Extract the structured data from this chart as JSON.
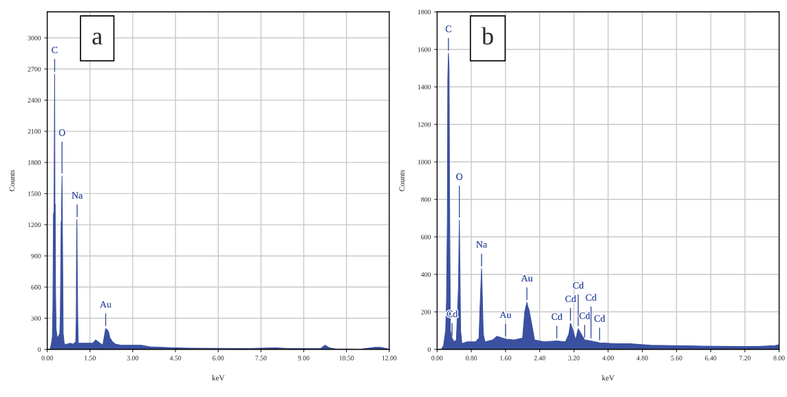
{
  "chart_data": [
    {
      "type": "area",
      "xlabel": "keV",
      "ylabel": "Counts",
      "xlim": [
        0,
        12
      ],
      "ylim": [
        0,
        3250
      ],
      "xticks": [
        {
          "value": 0,
          "label": "0.00"
        },
        {
          "value": 1.5,
          "label": "1.50"
        },
        {
          "value": 3,
          "label": "3.00"
        },
        {
          "value": 4.5,
          "label": "4.50"
        },
        {
          "value": 6,
          "label": "6.00"
        },
        {
          "value": 7.5,
          "label": "7.50"
        },
        {
          "value": 9,
          "label": "9.00"
        },
        {
          "value": 10.5,
          "label": "10.50"
        },
        {
          "value": 12,
          "label": "12.00"
        }
      ],
      "yticks": [
        0,
        300,
        600,
        900,
        1200,
        1500,
        1800,
        2100,
        2400,
        2700,
        3000
      ],
      "grid": true,
      "series": [
        {
          "color": "#3a51a1",
          "x": [
            0.1,
            0.15,
            0.18,
            0.2,
            0.22,
            0.24,
            0.26,
            0.27,
            0.28,
            0.29,
            0.31,
            0.35,
            0.4,
            0.44,
            0.46,
            0.49,
            0.5,
            0.52,
            0.54,
            0.56,
            0.6,
            0.7,
            0.8,
            0.9,
            1.0,
            1.02,
            1.03,
            1.04,
            1.05,
            1.07,
            1.09,
            1.12,
            1.2,
            1.4,
            1.6,
            1.7,
            1.8,
            1.95,
            2.05,
            2.1,
            2.15,
            2.2,
            2.3,
            2.4,
            2.6,
            3.0,
            3.3,
            3.6,
            4.0,
            4.5,
            5.0,
            6.0,
            7.0,
            8.0,
            8.5,
            9.0,
            9.6,
            9.75,
            9.9,
            10.1,
            11.0,
            11.5,
            11.7,
            12.0
          ],
          "values": [
            0,
            60,
            120,
            400,
            1310,
            1320,
            2650,
            1400,
            1400,
            600,
            200,
            110,
            130,
            150,
            320,
            1230,
            1240,
            1670,
            900,
            150,
            50,
            50,
            60,
            50,
            70,
            300,
            980,
            1250,
            870,
            300,
            50,
            60,
            60,
            60,
            60,
            90,
            70,
            40,
            200,
            190,
            170,
            110,
            70,
            50,
            40,
            40,
            40,
            25,
            20,
            15,
            12,
            10,
            8,
            15,
            8,
            8,
            10,
            40,
            15,
            5,
            2,
            20,
            20,
            2
          ]
        }
      ],
      "annotations": [
        "a",
        {
          "text": "C",
          "x": 0.26,
          "y": 2650
        },
        {
          "text": "O",
          "x": 0.52,
          "y": 1670
        },
        {
          "text": "Na",
          "x": 1.05,
          "y": 1250
        },
        {
          "text": "Au",
          "x": 2.05,
          "y": 200
        }
      ]
    },
    {
      "type": "area",
      "xlabel": "keV",
      "ylabel": "Counts",
      "xlim": [
        0,
        8
      ],
      "ylim": [
        0,
        1800
      ],
      "xticks": [
        {
          "value": 0,
          "label": "0.00"
        },
        {
          "value": 0.8,
          "label": "0.80"
        },
        {
          "value": 1.6,
          "label": "1.60"
        },
        {
          "value": 2.4,
          "label": "2.40"
        },
        {
          "value": 3.2,
          "label": "3.20"
        },
        {
          "value": 4,
          "label": "4.00"
        },
        {
          "value": 4.8,
          "label": "4.80"
        },
        {
          "value": 5.6,
          "label": "5.60"
        },
        {
          "value": 6.4,
          "label": "6.40"
        },
        {
          "value": 7.2,
          "label": "7.20"
        },
        {
          "value": 8,
          "label": "8.00"
        }
      ],
      "yticks": [
        0,
        200,
        400,
        600,
        800,
        1000,
        1200,
        1400,
        1600,
        1800
      ],
      "grid": true,
      "series": [
        {
          "color": "#3a51a1",
          "x": [
            0.1,
            0.15,
            0.2,
            0.22,
            0.24,
            0.25,
            0.265,
            0.28,
            0.29,
            0.31,
            0.35,
            0.4,
            0.45,
            0.5,
            0.51,
            0.52,
            0.53,
            0.55,
            0.58,
            0.7,
            0.9,
            0.98,
            1.0,
            1.04,
            1.06,
            1.08,
            1.12,
            1.3,
            1.4,
            1.6,
            1.8,
            2.0,
            2.05,
            2.1,
            2.12,
            2.15,
            2.2,
            2.28,
            2.5,
            2.8,
            3.0,
            3.08,
            3.12,
            3.18,
            3.24,
            3.3,
            3.35,
            3.45,
            3.6,
            3.8,
            4.2,
            4.5,
            5.0,
            5.5,
            6.0,
            7.0,
            7.5,
            7.9,
            8.0
          ],
          "values": [
            0,
            20,
            100,
            260,
            700,
            1440,
            1580,
            1490,
            860,
            100,
            60,
            40,
            50,
            330,
            520,
            690,
            500,
            100,
            30,
            40,
            40,
            60,
            200,
            430,
            260,
            80,
            40,
            50,
            70,
            55,
            50,
            60,
            200,
            250,
            230,
            210,
            150,
            50,
            40,
            45,
            40,
            80,
            140,
            100,
            50,
            110,
            90,
            50,
            45,
            35,
            30,
            30,
            22,
            20,
            18,
            15,
            15,
            20,
            25
          ]
        }
      ],
      "annotations": [
        "b",
        {
          "text": "C",
          "x": 0.265,
          "y": 1580
        },
        {
          "text": "O",
          "x": 0.52,
          "y": 690
        },
        {
          "text": "Na",
          "x": 1.04,
          "y": 430
        },
        {
          "text": "Au",
          "x": 2.1,
          "y": 250
        },
        {
          "text": "Au",
          "x": 1.6,
          "y": 55
        },
        {
          "text": "Cd",
          "x": 0.35,
          "y": 60
        },
        {
          "text": "Cd",
          "x": 2.8,
          "y": 45
        },
        {
          "text": "Cd",
          "x": 3.12,
          "y": 140
        },
        {
          "text": "Cd",
          "x": 3.3,
          "y": 110
        },
        {
          "text": "Cd",
          "x": 3.45,
          "y": 50
        },
        {
          "text": "Cd",
          "x": 3.6,
          "y": 45
        },
        {
          "text": "Cd",
          "x": 3.8,
          "y": 35
        }
      ]
    }
  ]
}
